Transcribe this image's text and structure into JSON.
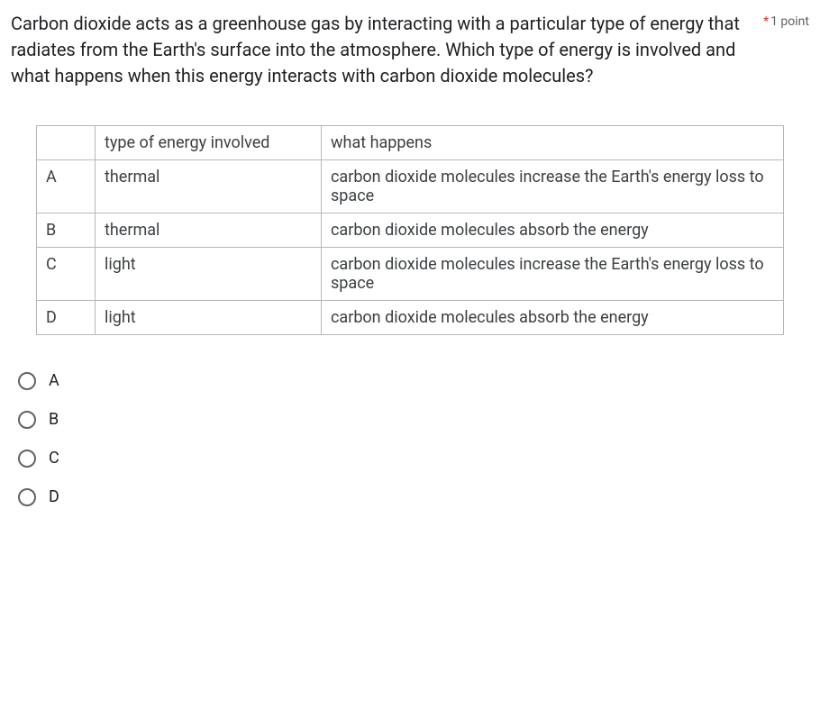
{
  "question": {
    "text": "Carbon dioxide acts as a greenhouse gas by interacting with a particular type of energy that radiates from the Earth's surface into the atmosphere. Which type of energy is involved and what happens when this energy interacts with carbon dioxide molecules?",
    "required_mark": "*",
    "points": "1 point"
  },
  "table": {
    "headers": {
      "blank": "",
      "col1": "type of energy involved",
      "col2": "what happens"
    },
    "rows": {
      "A": {
        "letter": "A",
        "type": "thermal",
        "what": "carbon dioxide molecules increase the Earth's energy loss to space"
      },
      "B": {
        "letter": "B",
        "type": "thermal",
        "what": "carbon dioxide molecules absorb the energy"
      },
      "C": {
        "letter": "C",
        "type": "light",
        "what": "carbon dioxide molecules increase the Earth's energy loss to space"
      },
      "D": {
        "letter": "D",
        "type": "light",
        "what": "carbon dioxide molecules absorb the energy"
      }
    }
  },
  "options": {
    "A": "A",
    "B": "B",
    "C": "C",
    "D": "D"
  }
}
